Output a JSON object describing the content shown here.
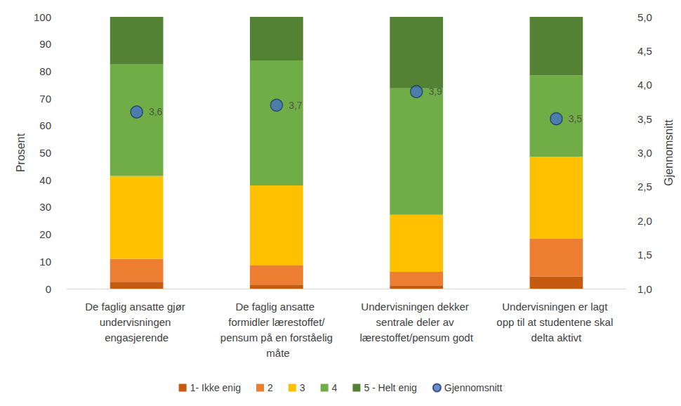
{
  "chart_data": {
    "type": "bar",
    "stacked": true,
    "grid": false,
    "legend": "bottom",
    "ylabel": "Prosent",
    "y2label": "Gjennomsnitt",
    "categories": [
      "De faglig ansatte gjør undervisningen engasjerende",
      "De faglig ansatte formidler lærestoffet/pensum på en forståelig måte",
      "Undervisningen dekker sentrale deler av lærestoffet/pensum godt",
      "Undervisningen er lagt opp til at studentene skal delta aktivt"
    ],
    "ylim": [
      0,
      100
    ],
    "yticks": [
      0,
      10,
      20,
      30,
      40,
      50,
      60,
      70,
      80,
      90,
      100
    ],
    "y2lim": [
      1,
      5
    ],
    "y2ticks": [
      {
        "value": 1,
        "label": "1,0"
      },
      {
        "value": 1.5,
        "label": "1,5"
      },
      {
        "value": 2,
        "label": "2,0"
      },
      {
        "value": 2.5,
        "label": "2,5"
      },
      {
        "value": 3,
        "label": "3,0"
      },
      {
        "value": 3.5,
        "label": "3,5"
      },
      {
        "value": 4,
        "label": "4,0"
      },
      {
        "value": 4.5,
        "label": "4,5"
      },
      {
        "value": 5,
        "label": "5,0"
      }
    ],
    "series": [
      {
        "name": "1- Ikke enig",
        "color": "#c55a11",
        "values": [
          2.5,
          1.5,
          1.2,
          4.5
        ]
      },
      {
        "name": "2",
        "color": "#ed7d31",
        "values": [
          8.5,
          7,
          5,
          14
        ]
      },
      {
        "name": "3",
        "color": "#ffc000",
        "values": [
          30.5,
          29.5,
          21,
          30
        ]
      },
      {
        "name": "4",
        "color": "#70ad47",
        "values": [
          41,
          46,
          46.5,
          30
        ]
      },
      {
        "name": "5 - Helt enig",
        "color": "#548235",
        "values": [
          17.5,
          16,
          26.3,
          21.5
        ]
      },
      {
        "name": "Gjennomsnitt",
        "color": "#4472c4",
        "type": "scatter",
        "axis": "y2",
        "marker": "circle",
        "data_labels": true,
        "values": [
          3.6,
          3.7,
          3.9,
          3.5
        ],
        "value_labels": [
          "3,6",
          "3,7",
          "3,9",
          "3,5"
        ]
      }
    ]
  }
}
